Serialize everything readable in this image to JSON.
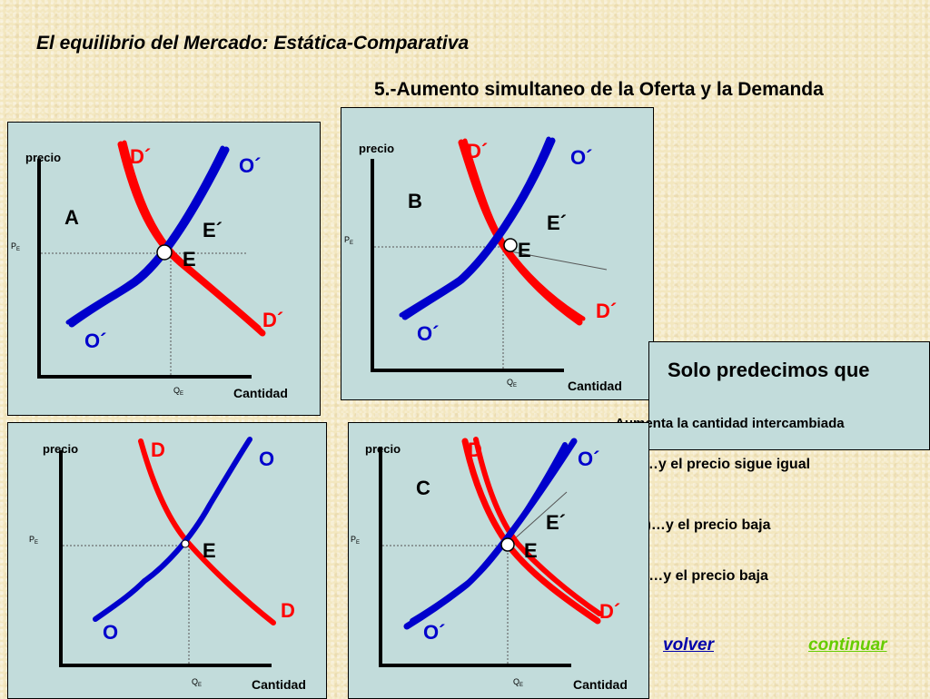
{
  "title": "El equilibrio del Mercado: Estática-Comparativa",
  "subtitle": "5.-Aumento simultaneo de la Oferta y la Demanda",
  "axis_labels": {
    "price": "precio",
    "quantity": "Cantidad",
    "pe": "P",
    "pe_sub": "E",
    "qe": "Q",
    "qe_sub": "E"
  },
  "panels": {
    "a": {
      "letter": "A",
      "d_shift": "D´",
      "d_shift_low": "D´",
      "o_shift": "O´",
      "o_low": "O´",
      "e_shift": "E´",
      "e": "E"
    },
    "b": {
      "letter": "B",
      "d_shift": "D´",
      "d_shift_low": "D´",
      "o_shift": "O´",
      "o_low": "O´",
      "e_shift": "E´",
      "e": "E"
    },
    "base": {
      "d": "D",
      "d_low": "D",
      "o": "O",
      "o_low": "O",
      "e": "E"
    },
    "c": {
      "letter": "C",
      "d_shift": "D",
      "d_shift_low": "D´",
      "o_shift": "O´",
      "o_low": "O´",
      "e_shift": "E´",
      "e": "E"
    }
  },
  "answer": {
    "lead": "Solo predecimos que",
    "line2": "Aumenta la cantidad intercambiada",
    "options": [
      "A)…y el precio sigue igual",
      "B)…y el precio baja",
      "c)…y el precio baja"
    ]
  },
  "nav": {
    "back": "volver",
    "next": "continuar"
  },
  "colors": {
    "supply": "#0000cc",
    "demand": "#ff0000",
    "panel_bg": "#c2dcdb",
    "back_link": "#0000aa",
    "next_link": "#66cc00"
  }
}
